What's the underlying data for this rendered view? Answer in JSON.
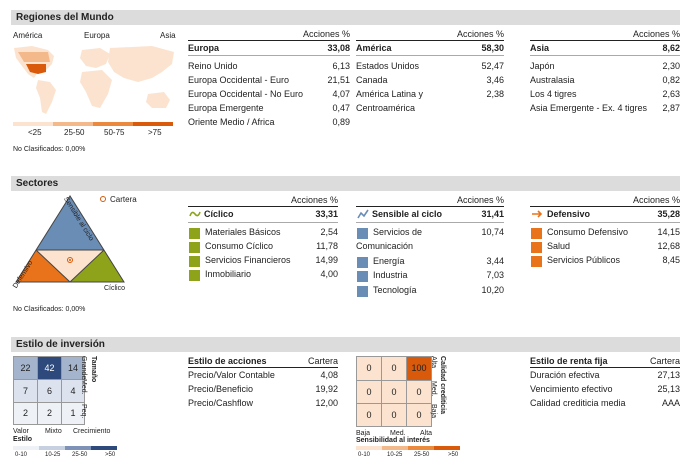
{
  "regions": {
    "title": "Regiones del Mundo",
    "map_labels": [
      "América",
      "Europa",
      "Asia"
    ],
    "legend": [
      "<25",
      "25-50",
      "50-75",
      ">75"
    ],
    "legend_colors": [
      "#fbe3cf",
      "#f4b98a",
      "#eb8a3f",
      "#d85a0a"
    ],
    "unclassified": "No Clasificados: 0,00%",
    "col_header": "Acciones %",
    "europa": {
      "name": "Europa",
      "total": "33,08",
      "rows": [
        [
          "Reino Unido",
          "6,13"
        ],
        [
          "Europa Occidental - Euro",
          "21,51"
        ],
        [
          "Europa Occidental - No Euro",
          "4,07"
        ],
        [
          "Europa Emergente",
          "0,47"
        ],
        [
          "Oriente Medio / Africa",
          "0,89"
        ]
      ]
    },
    "america": {
      "name": "América",
      "total": "58,30",
      "rows": [
        [
          "Estados Unidos",
          "52,47"
        ],
        [
          "Canada",
          "3,46"
        ],
        [
          "América Latina y",
          "2,38"
        ],
        [
          "Centroamérica",
          ""
        ]
      ]
    },
    "asia": {
      "name": "Asia",
      "total": "8,62",
      "rows": [
        [
          "Japón",
          "2,30"
        ],
        [
          "Australasia",
          "0,82"
        ],
        [
          "Los 4 tigres",
          "2,63"
        ],
        [
          "Asia Emergente - Ex. 4 tigres",
          "2,87"
        ]
      ]
    }
  },
  "sectors": {
    "title": "Sectores",
    "cartera": "Cartera",
    "tri_labels": {
      "left": "Defensivo",
      "right": "Sensible al ciclo",
      "bottom": "Cíclico"
    },
    "unclassified": "No Clasificados: 0,00%",
    "col_header": "Acciones %",
    "ciclico": {
      "name": "Cíclico",
      "total": "33,31",
      "color": "#8fa31a",
      "rows": [
        [
          "Materiales Básicos",
          "2,54"
        ],
        [
          "Consumo Cíclico",
          "11,78"
        ],
        [
          "Servicios Financieros",
          "14,99"
        ],
        [
          "Inmobiliario",
          "4,00"
        ]
      ]
    },
    "sensible": {
      "name": "Sensible al ciclo",
      "total": "31,41",
      "color": "#6a8db6",
      "rows": [
        [
          "Servicios de",
          "10,74"
        ],
        [
          "Comunicación",
          ""
        ],
        [
          "Energía",
          "3,44"
        ],
        [
          "Industria",
          "7,03"
        ],
        [
          "Tecnología",
          "10,20"
        ]
      ]
    },
    "defensivo": {
      "name": "Defensivo",
      "total": "35,28",
      "color": "#e8731a",
      "rows": [
        [
          "Consumo Defensivo",
          "14,15"
        ],
        [
          "Salud",
          "12,68"
        ],
        [
          "Servicios Públicos",
          "8,45"
        ]
      ]
    }
  },
  "style": {
    "title": "Estilo de inversión",
    "grid": [
      [
        "22",
        "42",
        "14"
      ],
      [
        "7",
        "6",
        "4"
      ],
      [
        "2",
        "2",
        "1"
      ]
    ],
    "grid_colors": [
      [
        "#a4b4cc",
        "#2e4a7c",
        "#a4b4cc"
      ],
      [
        "#dce3ee",
        "#dce3ee",
        "#dce3ee"
      ],
      [
        "#eef1f6",
        "#eef1f6",
        "#eef1f6"
      ]
    ],
    "size_label": "Tamaño",
    "size_ticks": [
      "Grande",
      "Med.",
      "Peq."
    ],
    "style_ticks": [
      "Valor",
      "Mixto",
      "Crecimiento"
    ],
    "style_label": "Estilo",
    "scale": [
      "0-10",
      "10-25",
      "25-50",
      ">50"
    ],
    "scale_colors": [
      "#eef1f6",
      "#c6d0e0",
      "#7d92b6",
      "#2e4a7c"
    ],
    "acc": {
      "title": "Estilo de acciones",
      "header": "Cartera",
      "rows": [
        [
          "Precio/Valor Contable",
          "4,08"
        ],
        [
          "Precio/Beneficio",
          "19,92"
        ],
        [
          "Precio/Cashflow",
          "12,00"
        ]
      ]
    },
    "bond_grid": [
      [
        "0",
        "0",
        "100"
      ],
      [
        "0",
        "0",
        "0"
      ],
      [
        "0",
        "0",
        "0"
      ]
    ],
    "bond_colors": [
      [
        "#fbe3cf",
        "#fbe3cf",
        "#d85a0a"
      ],
      [
        "#fbe3cf",
        "#fbe3cf",
        "#fbe3cf"
      ],
      [
        "#fbe3cf",
        "#fbe3cf",
        "#fbe3cf"
      ]
    ],
    "credit_label": "Calidad crediticia",
    "credit_ticks": [
      "Alta",
      "Med.",
      "Baja"
    ],
    "rate_ticks": [
      "Baja",
      "Med.",
      "Alta"
    ],
    "rate_label": "Sensibilidad al interés",
    "rf": {
      "title": "Estilo de renta fija",
      "header": "Cartera",
      "rows": [
        [
          "Duración efectiva",
          "27,13"
        ],
        [
          "Vencimiento efectivo",
          "25,13"
        ],
        [
          "Calidad crediticia media",
          "AAA"
        ]
      ]
    }
  }
}
